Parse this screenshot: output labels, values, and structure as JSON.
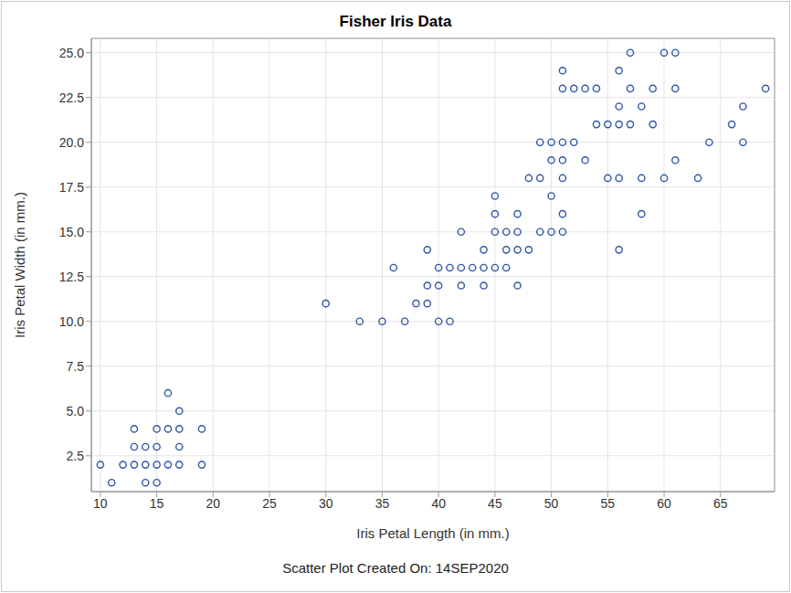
{
  "chart_data": {
    "type": "scatter",
    "title": "Fisher Iris Data",
    "x_label": "Iris Petal Length (in mm.)",
    "y_label": "Iris Petal Width (in mm.)",
    "footnote": "Scatter Plot Created On: 14SEP2020",
    "color": "#2f56a6",
    "marker": "circle",
    "grid": true,
    "x": [
      10,
      11,
      12,
      13,
      13,
      13,
      14,
      14,
      14,
      15,
      15,
      15,
      15,
      16,
      16,
      16,
      17,
      17,
      17,
      17,
      19,
      19,
      30,
      33,
      35,
      36,
      37,
      38,
      39,
      39,
      39,
      40,
      40,
      40,
      41,
      41,
      42,
      42,
      42,
      43,
      44,
      44,
      44,
      45,
      45,
      45,
      45,
      46,
      46,
      46,
      47,
      47,
      47,
      47,
      48,
      48,
      49,
      49,
      49,
      50,
      50,
      50,
      50,
      51,
      51,
      51,
      51,
      51,
      51,
      51,
      52,
      52,
      53,
      53,
      54,
      54,
      55,
      55,
      56,
      56,
      56,
      56,
      56,
      57,
      57,
      57,
      58,
      58,
      58,
      59,
      59,
      60,
      60,
      61,
      61,
      61,
      63,
      64,
      66,
      67,
      67,
      69
    ],
    "y": [
      2,
      1,
      2,
      2,
      3,
      4,
      1,
      2,
      3,
      1,
      2,
      3,
      4,
      2,
      4,
      6,
      2,
      3,
      4,
      5,
      2,
      4,
      11,
      10,
      10,
      13,
      10,
      11,
      11,
      12,
      14,
      10,
      12,
      13,
      10,
      13,
      12,
      13,
      15,
      13,
      12,
      13,
      14,
      13,
      15,
      16,
      17,
      13,
      14,
      15,
      12,
      14,
      15,
      16,
      14,
      18,
      15,
      18,
      20,
      15,
      17,
      19,
      20,
      15,
      16,
      18,
      19,
      20,
      23,
      24,
      20,
      23,
      19,
      23,
      21,
      23,
      18,
      21,
      14,
      18,
      21,
      22,
      24,
      21,
      23,
      25,
      16,
      18,
      22,
      21,
      23,
      18,
      25,
      19,
      23,
      25,
      18,
      20,
      21,
      20,
      22,
      23
    ],
    "xlim": [
      9.2,
      69.8
    ],
    "xticks": [
      10,
      15,
      20,
      25,
      30,
      35,
      40,
      45,
      50,
      55,
      60,
      65
    ],
    "ylim": [
      0.5,
      25.8
    ],
    "yticks": [
      2.5,
      {
        "value": 5,
        "label": "5.0"
      },
      7.5,
      {
        "value": 10,
        "label": "10.0"
      },
      12.5,
      {
        "value": 15,
        "label": "15.0"
      },
      17.5,
      {
        "value": 20,
        "label": "20.0"
      },
      22.5,
      {
        "value": 25,
        "label": "25.0"
      }
    ]
  }
}
